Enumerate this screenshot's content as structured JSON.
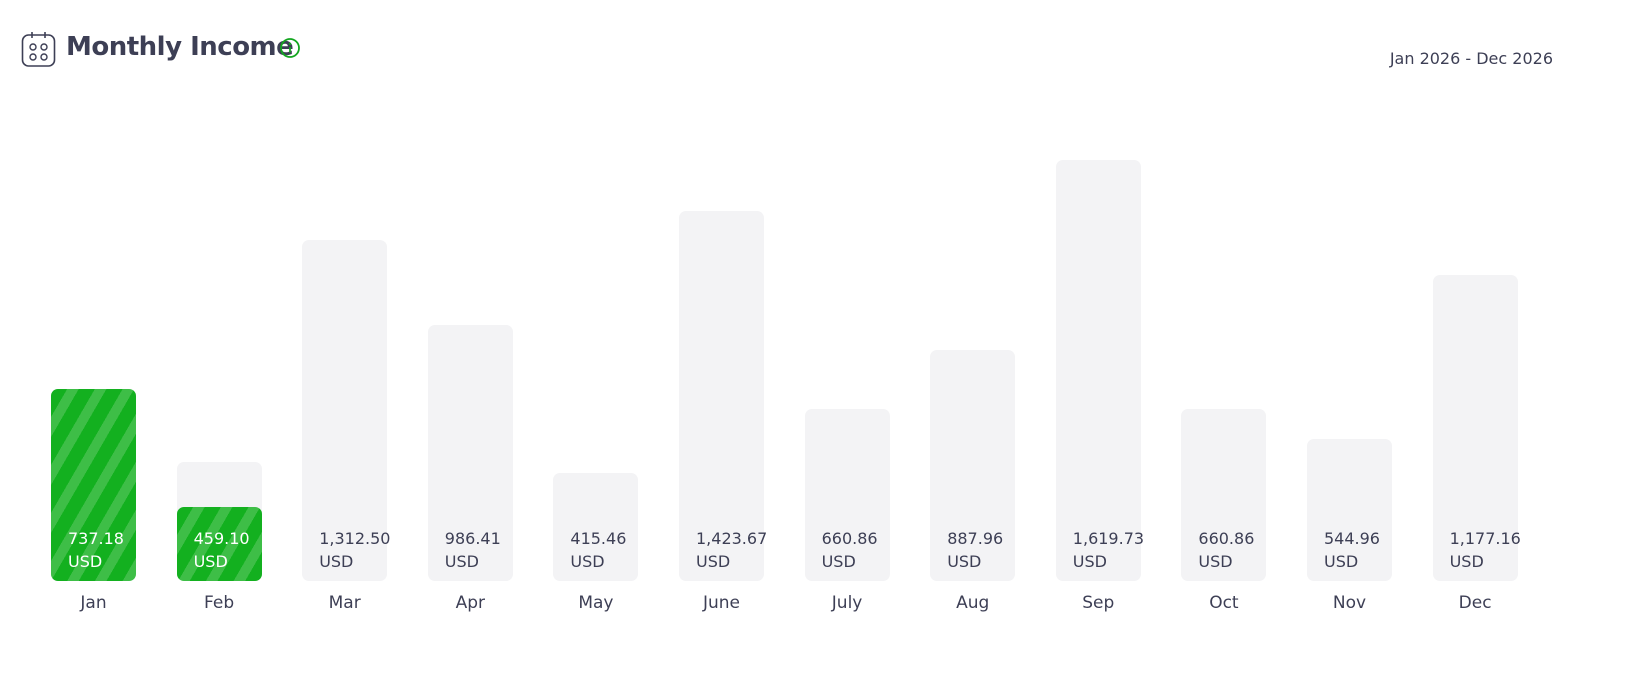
{
  "chart_data": {
    "type": "bar",
    "title": "Monthly Income",
    "subtitle": "Jan 2026 - Dec 2026",
    "categories": [
      "Jan",
      "Feb",
      "Mar",
      "Apr",
      "May",
      "June",
      "July",
      "Aug",
      "Sep",
      "Oct",
      "Nov",
      "Dec"
    ],
    "ylim": [
      0,
      1620
    ],
    "series": [
      {
        "color": "#f3f3f5",
        "values": [
          737.18,
          459.1,
          1312.5,
          986.41,
          415.46,
          1423.67,
          660.86,
          887.96,
          1619.73,
          660.86,
          544.96,
          1177.16
        ],
        "value_labels": [
          "737.18 USD",
          "459.10 USD",
          "1,312.50 USD",
          "986.41 USD",
          "415.46 USD",
          "1,423.67 USD",
          "660.86 USD",
          "887.96 USD",
          "1,619.73 USD",
          "660.86 USD",
          "544.96 USD",
          "1,177.16 USD"
        ]
      },
      {
        "color": "#13b01f",
        "values": [
          737.18,
          285,
          null,
          null,
          null,
          null,
          null,
          null,
          null,
          null,
          null,
          null
        ]
      }
    ]
  }
}
